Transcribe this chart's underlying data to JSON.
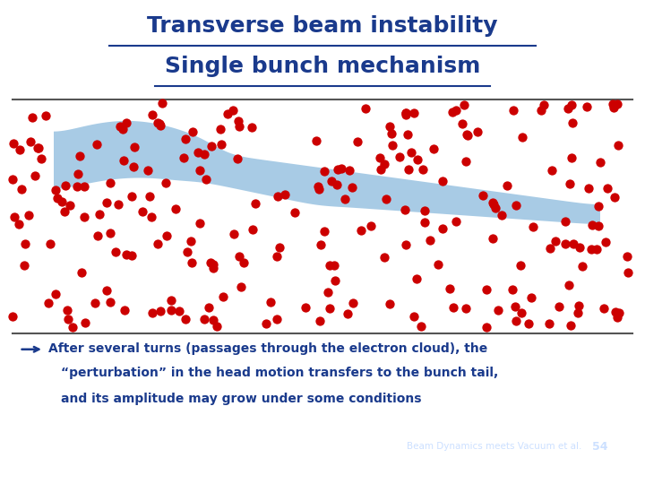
{
  "title_line1": "Transverse beam instability",
  "title_line2": "Single bunch mechanism",
  "title_color": "#1a3a8c",
  "title_fontsize": 18,
  "bg_color": "#ffffff",
  "footer_bg": "#3a6bbf",
  "footer_text": "Beam Dynamics meets Vacuum et al.",
  "footer_number": "54",
  "footer_color": "#cce0ff",
  "bullet_text_line1": "After several turns (passages through the electron cloud), the",
  "bullet_text_line2": "“perturbation” in the head motion transfers to the bunch tail,",
  "bullet_text_line3": "and its amplitude may grow under some conditions",
  "bullet_color": "#1a3a8c",
  "arrow_color": "#1a3a8c",
  "blob_color": "#7ab0d8",
  "blob_alpha": 0.65,
  "dot_color": "#cc0000",
  "separator_color": "#555555",
  "separator_lw": 1.5,
  "n_dots": 250,
  "dot_size": 55,
  "seed": 42
}
